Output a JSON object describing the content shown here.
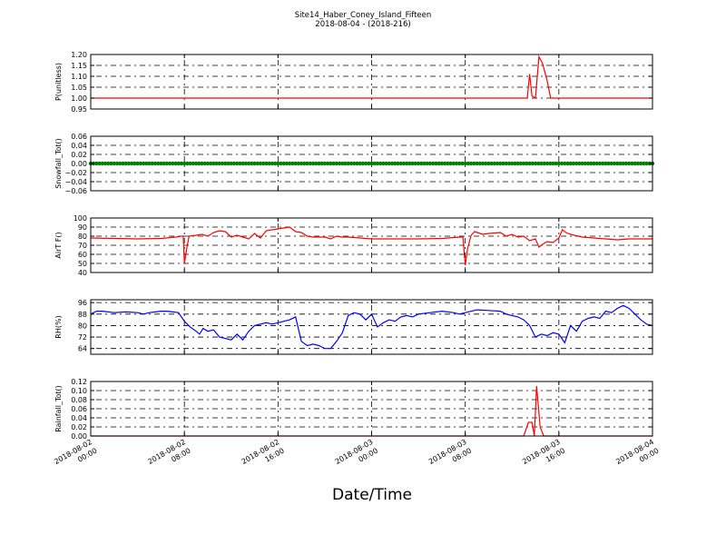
{
  "figure": {
    "title_line1": "Site14_Haber_Coney_Island_Fifteen",
    "title_line2": "2018-08-04 - (2018-216)",
    "xlabel": "Date/Time"
  },
  "x_axis": {
    "range_hours": [
      0,
      48
    ],
    "ticks": [
      {
        "hour": 0,
        "line1": "2018-08-02",
        "line2": "00:00"
      },
      {
        "hour": 8,
        "line1": "2018-08-02",
        "line2": "08:00"
      },
      {
        "hour": 16,
        "line1": "2018-08-02",
        "line2": "16:00"
      },
      {
        "hour": 24,
        "line1": "2018-08-03",
        "line2": "00:00"
      },
      {
        "hour": 32,
        "line1": "2018-08-03",
        "line2": "08:00"
      },
      {
        "hour": 40,
        "line1": "2018-08-03",
        "line2": "16:00"
      },
      {
        "hour": 48,
        "line1": "2018-08-04",
        "line2": "00:00"
      }
    ]
  },
  "chart_data": [
    {
      "type": "line",
      "ylabel": "P(unitless)",
      "ylim": [
        0.95,
        1.2
      ],
      "yticks": [
        "0.95",
        "1.00",
        "1.05",
        "1.10",
        "1.15",
        "1.20"
      ],
      "ytick_values": [
        0.95,
        1.0,
        1.05,
        1.1,
        1.15,
        1.2
      ],
      "grid": true,
      "color": "#ff0000",
      "points": [
        [
          0,
          1.0
        ],
        [
          37.3,
          1.0
        ],
        [
          37.5,
          1.11
        ],
        [
          37.7,
          1.01
        ],
        [
          38.0,
          1.0
        ],
        [
          38.3,
          1.19
        ],
        [
          38.6,
          1.16
        ],
        [
          39.0,
          1.08
        ],
        [
          39.3,
          1.0
        ],
        [
          48,
          1.0
        ]
      ]
    },
    {
      "type": "scatter",
      "ylabel": "Snowfall_Tot()",
      "ylim": [
        -0.06,
        0.06
      ],
      "yticks": [
        "−0.06",
        "−0.04",
        "−0.02",
        "0.00",
        "0.02",
        "0.04",
        "0.06"
      ],
      "ytick_values": [
        -0.06,
        -0.04,
        -0.02,
        0.0,
        0.02,
        0.04,
        0.06
      ],
      "grid": true,
      "color": "#008000",
      "constant_value": 0.0,
      "interval_hours": 0.25
    },
    {
      "type": "line",
      "ylabel": "AirT F()",
      "ylim": [
        40,
        100
      ],
      "yticks": [
        "40",
        "50",
        "60",
        "70",
        "80",
        "90",
        "100"
      ],
      "ytick_values": [
        40,
        50,
        60,
        70,
        80,
        90,
        100
      ],
      "grid": true,
      "color": "#ff0000",
      "points": [
        [
          0,
          78
        ],
        [
          2,
          77.5
        ],
        [
          4,
          77
        ],
        [
          6,
          77.5
        ],
        [
          7.3,
          79
        ],
        [
          7.7,
          80
        ],
        [
          7.9,
          80
        ],
        [
          8.0,
          50
        ],
        [
          8.2,
          66
        ],
        [
          8.4,
          80
        ],
        [
          9,
          81
        ],
        [
          9.5,
          82
        ],
        [
          10,
          80
        ],
        [
          10.5,
          84
        ],
        [
          11,
          86
        ],
        [
          11.5,
          85
        ],
        [
          12,
          79
        ],
        [
          12.5,
          81
        ],
        [
          13,
          79
        ],
        [
          13.5,
          77
        ],
        [
          14,
          83
        ],
        [
          14.5,
          78
        ],
        [
          15,
          86
        ],
        [
          16,
          88
        ],
        [
          16.5,
          89
        ],
        [
          17,
          90
        ],
        [
          17.5,
          85
        ],
        [
          18,
          84
        ],
        [
          18.5,
          80
        ],
        [
          19,
          79
        ],
        [
          20,
          79
        ],
        [
          20.5,
          77
        ],
        [
          21,
          80
        ],
        [
          21.5,
          79
        ],
        [
          22,
          79
        ],
        [
          23,
          78
        ],
        [
          24,
          77
        ],
        [
          26,
          77
        ],
        [
          28,
          77
        ],
        [
          30,
          77.5
        ],
        [
          31.6,
          79
        ],
        [
          31.8,
          79
        ],
        [
          32.0,
          48
        ],
        [
          32.2,
          66
        ],
        [
          32.5,
          81
        ],
        [
          32.8,
          85
        ],
        [
          33.5,
          82
        ],
        [
          34,
          83
        ],
        [
          35,
          84
        ],
        [
          35.5,
          80
        ],
        [
          36,
          82
        ],
        [
          36.5,
          79
        ],
        [
          37,
          80
        ],
        [
          37.5,
          75
        ],
        [
          38,
          77
        ],
        [
          38.3,
          68
        ],
        [
          38.6,
          71
        ],
        [
          39,
          74
        ],
        [
          39.5,
          73
        ],
        [
          40,
          78
        ],
        [
          40.3,
          87
        ],
        [
          40.6,
          84
        ],
        [
          41,
          82
        ],
        [
          42,
          79
        ],
        [
          43,
          78
        ],
        [
          44,
          77
        ],
        [
          45,
          76
        ],
        [
          46,
          77
        ],
        [
          47,
          77
        ],
        [
          48,
          77
        ]
      ]
    },
    {
      "type": "line",
      "ylabel": "RH(%)",
      "ylim": [
        60,
        98
      ],
      "yticks": [
        "64",
        "72",
        "80",
        "88",
        "96"
      ],
      "ytick_values": [
        64,
        72,
        80,
        88,
        96
      ],
      "grid": true,
      "color": "#0000ff",
      "points": [
        [
          0,
          88
        ],
        [
          0.5,
          90
        ],
        [
          1,
          90
        ],
        [
          2,
          89
        ],
        [
          3,
          89.5
        ],
        [
          4,
          89
        ],
        [
          4.5,
          88
        ],
        [
          5,
          89
        ],
        [
          6,
          90
        ],
        [
          6.5,
          90
        ],
        [
          7,
          89.5
        ],
        [
          7.5,
          89
        ],
        [
          8,
          83
        ],
        [
          8.5,
          79
        ],
        [
          9,
          76
        ],
        [
          9.3,
          74
        ],
        [
          9.6,
          78
        ],
        [
          10,
          76
        ],
        [
          10.5,
          77
        ],
        [
          11,
          72
        ],
        [
          11.5,
          71
        ],
        [
          12,
          70
        ],
        [
          12.5,
          74
        ],
        [
          13,
          70
        ],
        [
          13.5,
          76
        ],
        [
          14,
          80
        ],
        [
          15,
          82
        ],
        [
          15.5,
          81
        ],
        [
          16,
          82
        ],
        [
          17,
          84
        ],
        [
          17.5,
          86
        ],
        [
          18,
          69
        ],
        [
          18.5,
          66
        ],
        [
          19,
          67
        ],
        [
          19.5,
          66
        ],
        [
          20,
          64
        ],
        [
          20.5,
          64
        ],
        [
          21,
          69
        ],
        [
          21.5,
          75
        ],
        [
          22,
          87
        ],
        [
          22.5,
          89
        ],
        [
          23,
          88
        ],
        [
          23.5,
          84
        ],
        [
          24,
          88
        ],
        [
          24.5,
          79
        ],
        [
          25,
          82
        ],
        [
          25.5,
          84
        ],
        [
          26,
          83
        ],
        [
          26.5,
          86
        ],
        [
          27,
          87
        ],
        [
          27.5,
          86
        ],
        [
          28,
          88
        ],
        [
          29,
          89
        ],
        [
          30,
          90
        ],
        [
          31,
          89
        ],
        [
          31.5,
          88
        ],
        [
          32,
          89
        ],
        [
          33,
          91
        ],
        [
          34,
          90.5
        ],
        [
          35,
          90
        ],
        [
          35.5,
          88
        ],
        [
          36,
          87
        ],
        [
          36.5,
          86
        ],
        [
          37,
          84
        ],
        [
          37.5,
          80
        ],
        [
          38,
          72
        ],
        [
          38.5,
          74
        ],
        [
          39,
          73
        ],
        [
          39.5,
          75
        ],
        [
          40,
          74
        ],
        [
          40.5,
          68
        ],
        [
          41,
          80
        ],
        [
          41.5,
          76
        ],
        [
          42,
          83
        ],
        [
          42.5,
          85
        ],
        [
          43,
          86
        ],
        [
          43.5,
          85
        ],
        [
          44,
          90
        ],
        [
          44.5,
          89
        ],
        [
          45,
          92
        ],
        [
          45.5,
          94
        ],
        [
          46,
          92
        ],
        [
          46.5,
          88
        ],
        [
          47,
          84
        ],
        [
          47.5,
          81
        ],
        [
          48,
          80
        ]
      ]
    },
    {
      "type": "line",
      "ylabel": "Rainfall_Tot()",
      "ylim": [
        0.0,
        0.12
      ],
      "yticks": [
        "0.00",
        "0.02",
        "0.04",
        "0.06",
        "0.08",
        "0.10",
        "0.12"
      ],
      "ytick_values": [
        0.0,
        0.02,
        0.04,
        0.06,
        0.08,
        0.1,
        0.12
      ],
      "grid": true,
      "color": "#ff0000",
      "points": [
        [
          0,
          0
        ],
        [
          37.0,
          0
        ],
        [
          37.4,
          0.03
        ],
        [
          37.7,
          0.03
        ],
        [
          37.9,
          0.0
        ],
        [
          38.1,
          0.11
        ],
        [
          38.4,
          0.02
        ],
        [
          38.7,
          0.0
        ],
        [
          48,
          0
        ]
      ]
    }
  ]
}
